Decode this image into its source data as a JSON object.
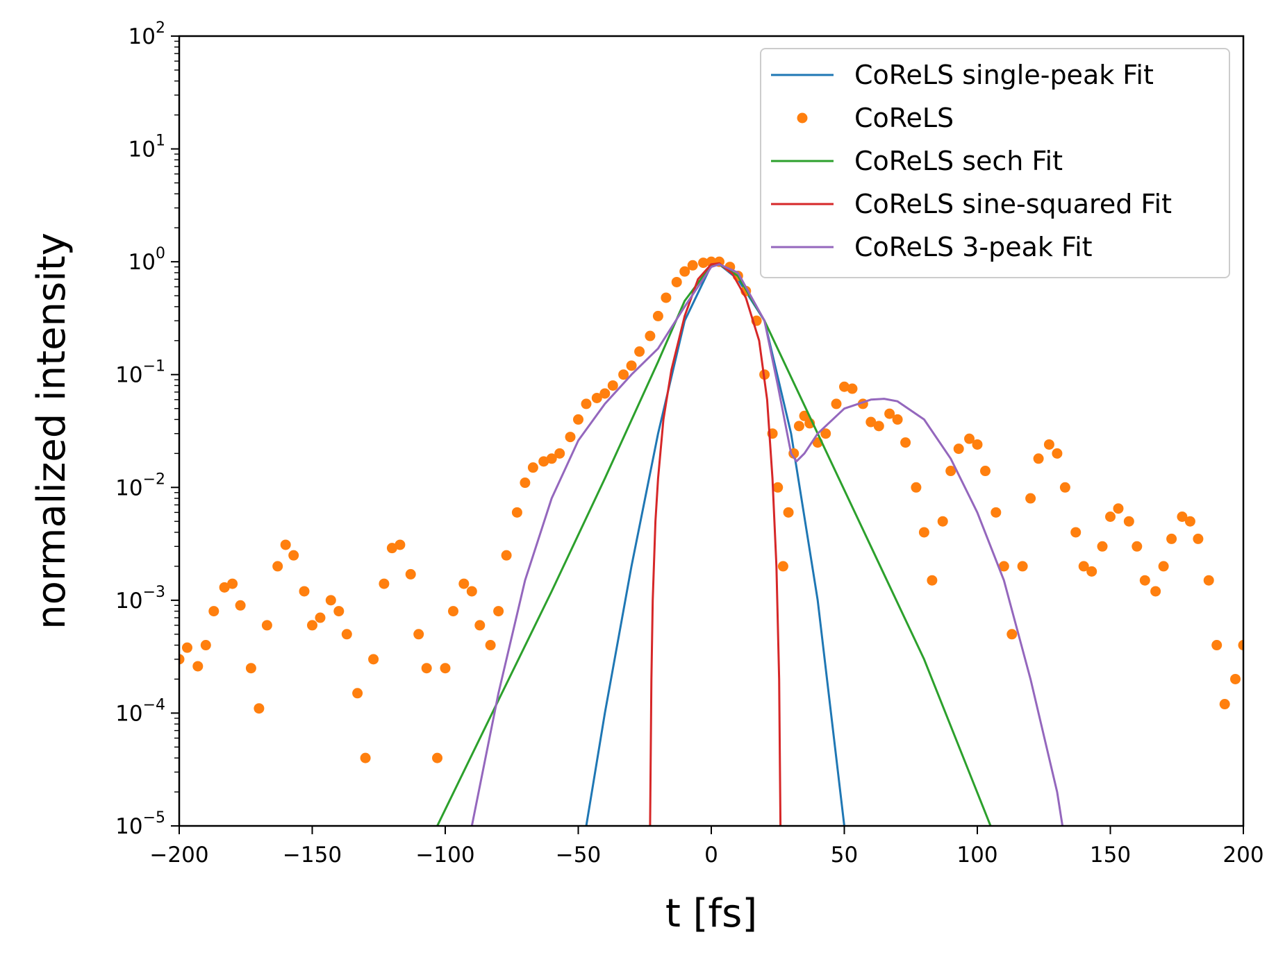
{
  "chart_data": {
    "type": "line",
    "xlabel": "t [fs]",
    "ylabel": "normalized intensity",
    "xlim": [
      -200,
      200
    ],
    "ylim": [
      1e-05,
      100
    ],
    "yscale": "log",
    "grid": false,
    "legend_position": "top-right",
    "x_ticks": [
      -200,
      -150,
      -100,
      -50,
      0,
      50,
      100,
      150,
      200
    ],
    "x_tick_labels": [
      "−200",
      "−150",
      "−100",
      "−50",
      "0",
      "50",
      "100",
      "150",
      "200"
    ],
    "y_ticks": [
      1e-05,
      0.0001,
      0.001,
      0.01,
      0.1,
      1,
      10,
      100
    ],
    "y_tick_labels": [
      {
        "base": "10",
        "exp": "−5"
      },
      {
        "base": "10",
        "exp": "−4"
      },
      {
        "base": "10",
        "exp": "−3"
      },
      {
        "base": "10",
        "exp": "−2"
      },
      {
        "base": "10",
        "exp": "−1"
      },
      {
        "base": "10",
        "exp": "0"
      },
      {
        "base": "10",
        "exp": "1"
      },
      {
        "base": "10",
        "exp": "2"
      }
    ],
    "series": [
      {
        "name": "CoReLS single-peak Fit",
        "style": "line",
        "color": "#1f77b4",
        "x": [
          -47,
          -40,
          -30,
          -20,
          -10,
          0,
          3,
          10,
          20,
          30,
          40,
          50
        ],
        "y": [
          1e-05,
          0.0001,
          0.002,
          0.03,
          0.3,
          0.93,
          0.95,
          0.7,
          0.3,
          0.03,
          0.001,
          1e-05
        ]
      },
      {
        "name": "CoReLS",
        "style": "points",
        "color": "#ff7f0e",
        "x": [
          -200,
          -197,
          -193,
          -190,
          -187,
          -183,
          -180,
          -177,
          -173,
          -170,
          -167,
          -163,
          -160,
          -157,
          -153,
          -150,
          -147,
          -143,
          -140,
          -137,
          -133,
          -130,
          -127,
          -123,
          -120,
          -117,
          -113,
          -110,
          -107,
          -103,
          -100,
          -97,
          -93,
          -90,
          -87,
          -83,
          -80,
          -77,
          -73,
          -70,
          -67,
          -63,
          -60,
          -57,
          -53,
          -50,
          -47,
          -43,
          -40,
          -37,
          -33,
          -30,
          -27,
          -23,
          -20,
          -17,
          -13,
          -10,
          -7,
          -3,
          0,
          3,
          7,
          10,
          13,
          17,
          20,
          23,
          25,
          27,
          29,
          31,
          33,
          35,
          37,
          40,
          43,
          47,
          50,
          53,
          57,
          60,
          63,
          67,
          70,
          73,
          77,
          80,
          83,
          87,
          90,
          93,
          97,
          100,
          103,
          107,
          110,
          113,
          117,
          120,
          123,
          127,
          130,
          133,
          137,
          140,
          143,
          147,
          150,
          153,
          157,
          160,
          163,
          167,
          170,
          173,
          177,
          180,
          183,
          187,
          190,
          193,
          197,
          200
        ],
        "y": [
          0.0003,
          0.00038,
          0.00026,
          0.0004,
          0.0008,
          0.0013,
          0.0014,
          0.0009,
          0.00025,
          0.00011,
          0.0006,
          0.002,
          0.0031,
          0.0025,
          0.0012,
          0.0006,
          0.0007,
          0.001,
          0.0008,
          0.0005,
          0.00015,
          4e-05,
          0.0003,
          0.0014,
          0.0029,
          0.0031,
          0.0017,
          0.0005,
          0.00025,
          4e-05,
          0.00025,
          0.0008,
          0.0014,
          0.0012,
          0.0006,
          0.0004,
          0.0008,
          0.0025,
          0.006,
          0.011,
          0.015,
          0.017,
          0.018,
          0.02,
          0.028,
          0.04,
          0.055,
          0.062,
          0.068,
          0.08,
          0.1,
          0.12,
          0.16,
          0.22,
          0.33,
          0.48,
          0.66,
          0.82,
          0.93,
          0.98,
          1.0,
          1.0,
          0.9,
          0.75,
          0.55,
          0.3,
          0.1,
          0.03,
          0.01,
          0.002,
          0.006,
          0.02,
          0.035,
          0.043,
          0.037,
          0.025,
          0.03,
          0.055,
          0.078,
          0.075,
          0.055,
          0.038,
          0.035,
          0.045,
          0.04,
          0.025,
          0.01,
          0.004,
          0.0015,
          0.005,
          0.014,
          0.022,
          0.027,
          0.024,
          0.014,
          0.006,
          0.002,
          0.0005,
          0.002,
          0.008,
          0.018,
          0.024,
          0.02,
          0.01,
          0.004,
          0.002,
          0.0018,
          0.003,
          0.0055,
          0.0065,
          0.005,
          0.003,
          0.0015,
          0.0012,
          0.002,
          0.0035,
          0.0055,
          0.005,
          0.0035,
          0.0015,
          0.0004,
          0.00012,
          0.0002,
          0.0004
        ]
      },
      {
        "name": "CoReLS sech Fit",
        "style": "line",
        "color": "#2ca02c",
        "x": [
          -103,
          -80,
          -60,
          -40,
          -20,
          -10,
          0,
          3,
          10,
          20,
          40,
          60,
          80,
          105
        ],
        "y": [
          1e-05,
          0.00013,
          0.0012,
          0.012,
          0.13,
          0.45,
          0.93,
          0.95,
          0.75,
          0.3,
          0.03,
          0.003,
          0.0003,
          1e-05
        ]
      },
      {
        "name": "CoReLS sine-squared Fit",
        "style": "line",
        "color": "#d62728",
        "x": [
          -23,
          -22.5,
          -22,
          -21,
          -20,
          -18,
          -15,
          -10,
          -5,
          0,
          3,
          8,
          13,
          18,
          21,
          23,
          24.5,
          25.5,
          26
        ],
        "y": [
          1e-05,
          0.0002,
          0.001,
          0.005,
          0.012,
          0.04,
          0.11,
          0.33,
          0.7,
          0.95,
          0.97,
          0.78,
          0.48,
          0.2,
          0.06,
          0.012,
          0.002,
          0.0002,
          1e-05
        ]
      },
      {
        "name": "CoReLS 3-peak Fit",
        "style": "line",
        "color": "#9467bd",
        "x": [
          -90,
          -80,
          -70,
          -60,
          -50,
          -40,
          -30,
          -20,
          -10,
          0,
          3,
          10,
          20,
          25,
          30,
          32,
          35,
          40,
          50,
          60,
          65,
          70,
          80,
          90,
          100,
          110,
          120,
          130,
          132
        ],
        "y": [
          1e-05,
          0.00015,
          0.0015,
          0.008,
          0.026,
          0.055,
          0.1,
          0.17,
          0.4,
          0.9,
          0.95,
          0.8,
          0.3,
          0.08,
          0.02,
          0.017,
          0.02,
          0.03,
          0.05,
          0.06,
          0.061,
          0.058,
          0.04,
          0.018,
          0.006,
          0.0015,
          0.0002,
          2e-05,
          1e-05
        ]
      }
    ],
    "legend": {
      "entries": [
        "CoReLS single-peak Fit",
        "CoReLS",
        "CoReLS sech Fit",
        "CoReLS sine-squared Fit",
        "CoReLS 3-peak Fit"
      ]
    }
  }
}
